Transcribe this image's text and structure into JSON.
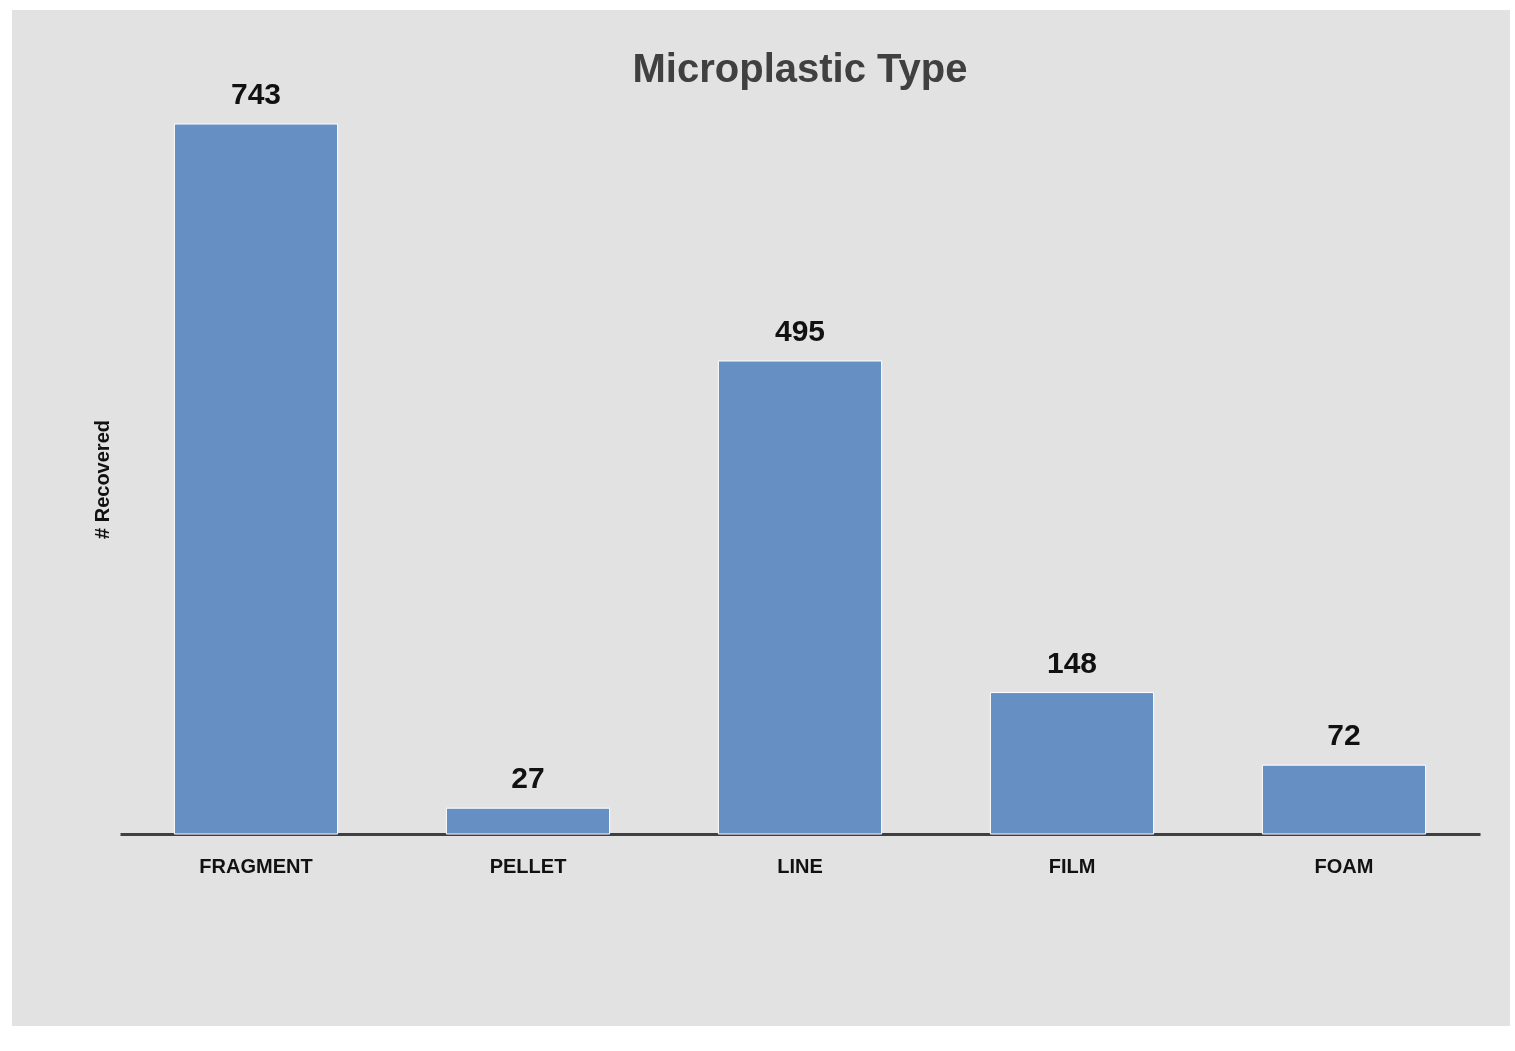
{
  "chart_data": {
    "type": "bar",
    "title": "Microplastic Type",
    "ylabel": "# Recovered",
    "categories": [
      "FRAGMENT",
      "PELLET",
      "LINE",
      "FILM",
      "FOAM"
    ],
    "values": [
      743,
      27,
      495,
      148,
      72
    ],
    "color": "#6690c4",
    "data_labels": true
  }
}
